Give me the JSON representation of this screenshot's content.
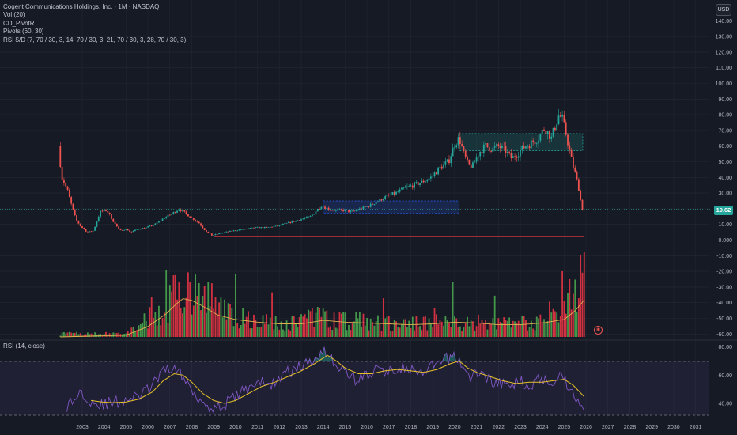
{
  "header": {
    "symbol_line": "Cogent Communications Holdings, Inc. · 1M · NASDAQ",
    "indicators": [
      "Vol (20)",
      "CD_PivotR",
      "Pivots (60, 30)",
      "RSI $/D (7, 70 / 30, 3, 14, 70 / 30, 3, 21, 70 / 30, 3, 28, 70 / 30, 3)"
    ],
    "currency": "USD",
    "last_price_label": "19.62",
    "rsi_label": "RSI (14, close)"
  },
  "colors": {
    "background": "#161a25",
    "up": "#26a69a",
    "down": "#ef5350",
    "vol_up": "#4caf50",
    "vol_down": "#f23645",
    "vol_ma": "#e0b050",
    "rsi_line": "#7e57c2",
    "rsi_ma": "#e6c229",
    "support_line": "#f23645",
    "zone_green": "#26a69a",
    "zone_blue": "#2962ff",
    "grid": "#242833",
    "axis_text": "#b2b5be"
  },
  "chart_data": {
    "type": "candlestick",
    "title": "Cogent Communications Holdings, Inc. · 1M · NASDAQ",
    "x_axis_labels": [
      "2003",
      "2004",
      "2005",
      "2006",
      "2007",
      "2008",
      "2009",
      "2010",
      "2011",
      "2012",
      "2013",
      "2014",
      "2015",
      "2016",
      "2017",
      "2018",
      "2019",
      "2020",
      "2021",
      "2022",
      "2023",
      "2024",
      "2025",
      "2026",
      "2027",
      "2028",
      "2029",
      "2030",
      "2031"
    ],
    "price_axis_labels": [
      "140.00",
      "130.00",
      "120.00",
      "110.00",
      "100.00",
      "90.00",
      "80.00",
      "70.00",
      "60.00",
      "50.00",
      "40.00",
      "30.00",
      "20.00",
      "10.00",
      "0.000",
      "-10.00",
      "-20.00",
      "-30.00",
      "-40.00",
      "-50.00",
      "-60.00"
    ],
    "price_axis_values": [
      140,
      130,
      120,
      110,
      100,
      90,
      80,
      70,
      60,
      50,
      40,
      30,
      20,
      10,
      0,
      -10,
      -20,
      -30,
      -40,
      -50,
      -60
    ],
    "rsi_axis_labels": [
      "80.00",
      "60.00",
      "40.00"
    ],
    "rsi_axis_values": [
      80,
      60,
      40
    ],
    "x_range": [
      2003,
      2031
    ],
    "y_range": [
      -65,
      145
    ],
    "rsi_range": [
      35,
      82
    ],
    "last_price": 19.62,
    "support_level": 2.2,
    "zones": [
      {
        "kind": "green",
        "x": [
          2020.2,
          2025.85
        ],
        "y": [
          57,
          68
        ]
      },
      {
        "kind": "blue",
        "x": [
          2014.0,
          2020.2
        ],
        "y": [
          17,
          25
        ]
      }
    ],
    "price_path": [
      [
        2002.0,
        60
      ],
      [
        2002.15,
        40
      ],
      [
        2002.4,
        32
      ],
      [
        2002.6,
        22
      ],
      [
        2002.8,
        13
      ],
      [
        2003.0,
        9
      ],
      [
        2003.3,
        5
      ],
      [
        2003.6,
        6
      ],
      [
        2003.9,
        18
      ],
      [
        2004.2,
        19
      ],
      [
        2004.5,
        12
      ],
      [
        2004.8,
        6
      ],
      [
        2005.1,
        7
      ],
      [
        2005.3,
        5
      ],
      [
        2005.6,
        7
      ],
      [
        2006.0,
        8
      ],
      [
        2006.4,
        10
      ],
      [
        2006.8,
        14
      ],
      [
        2007.2,
        17
      ],
      [
        2007.5,
        20
      ],
      [
        2007.8,
        17
      ],
      [
        2008.1,
        14
      ],
      [
        2008.4,
        11
      ],
      [
        2008.7,
        6
      ],
      [
        2009.0,
        3
      ],
      [
        2009.3,
        4
      ],
      [
        2009.6,
        5
      ],
      [
        2010.0,
        6
      ],
      [
        2010.5,
        7
      ],
      [
        2011.0,
        8
      ],
      [
        2011.5,
        8
      ],
      [
        2012.0,
        9
      ],
      [
        2012.5,
        11
      ],
      [
        2013.0,
        13
      ],
      [
        2013.5,
        15
      ],
      [
        2014.0,
        22
      ],
      [
        2014.3,
        20
      ],
      [
        2014.6,
        19
      ],
      [
        2015.0,
        19
      ],
      [
        2015.4,
        18
      ],
      [
        2015.8,
        20
      ],
      [
        2016.2,
        22
      ],
      [
        2016.6,
        25
      ],
      [
        2017.0,
        28
      ],
      [
        2017.4,
        30
      ],
      [
        2017.8,
        33
      ],
      [
        2018.2,
        35
      ],
      [
        2018.6,
        37
      ],
      [
        2019.0,
        40
      ],
      [
        2019.4,
        46
      ],
      [
        2019.8,
        50
      ],
      [
        2020.1,
        62
      ],
      [
        2020.3,
        65
      ],
      [
        2020.5,
        55
      ],
      [
        2020.7,
        48
      ],
      [
        2020.9,
        47
      ],
      [
        2021.2,
        56
      ],
      [
        2021.5,
        60
      ],
      [
        2021.8,
        58
      ],
      [
        2022.1,
        60
      ],
      [
        2022.4,
        57
      ],
      [
        2022.7,
        52
      ],
      [
        2023.0,
        56
      ],
      [
        2023.3,
        60
      ],
      [
        2023.6,
        62
      ],
      [
        2023.9,
        65
      ],
      [
        2024.2,
        72
      ],
      [
        2024.5,
        65
      ],
      [
        2024.7,
        74
      ],
      [
        2024.85,
        80
      ],
      [
        2025.0,
        77
      ],
      [
        2025.2,
        66
      ],
      [
        2025.4,
        52
      ],
      [
        2025.6,
        42
      ],
      [
        2025.75,
        33
      ],
      [
        2025.9,
        19.6
      ]
    ],
    "volume_path": [
      [
        2005.0,
        0.04
      ],
      [
        2005.5,
        0.12
      ],
      [
        2006.0,
        0.22
      ],
      [
        2006.5,
        0.32
      ],
      [
        2007.0,
        0.44
      ],
      [
        2007.3,
        0.58
      ],
      [
        2007.6,
        0.62
      ],
      [
        2008.0,
        0.55
      ],
      [
        2008.5,
        0.48
      ],
      [
        2009.0,
        0.42
      ],
      [
        2009.5,
        0.33
      ],
      [
        2010.0,
        0.28
      ],
      [
        2011.0,
        0.22
      ],
      [
        2012.0,
        0.18
      ],
      [
        2013.0,
        0.2
      ],
      [
        2014.0,
        0.28
      ],
      [
        2014.5,
        0.22
      ],
      [
        2015.0,
        0.2
      ],
      [
        2016.0,
        0.2
      ],
      [
        2017.0,
        0.18
      ],
      [
        2018.0,
        0.17
      ],
      [
        2019.0,
        0.18
      ],
      [
        2020.0,
        0.2
      ],
      [
        2021.0,
        0.18
      ],
      [
        2022.0,
        0.16
      ],
      [
        2023.0,
        0.17
      ],
      [
        2024.0,
        0.2
      ],
      [
        2024.5,
        0.25
      ],
      [
        2025.0,
        0.3
      ],
      [
        2025.5,
        0.65
      ],
      [
        2025.9,
        0.9
      ]
    ],
    "volume_ma_path": [
      [
        2002.0,
        0.0
      ],
      [
        2005.0,
        0.02
      ],
      [
        2006.0,
        0.12
      ],
      [
        2006.8,
        0.26
      ],
      [
        2007.3,
        0.38
      ],
      [
        2007.6,
        0.44
      ],
      [
        2008.0,
        0.42
      ],
      [
        2008.6,
        0.34
      ],
      [
        2009.2,
        0.25
      ],
      [
        2010.0,
        0.2
      ],
      [
        2011.0,
        0.17
      ],
      [
        2012.0,
        0.15
      ],
      [
        2013.0,
        0.15
      ],
      [
        2014.0,
        0.19
      ],
      [
        2015.0,
        0.17
      ],
      [
        2016.0,
        0.16
      ],
      [
        2017.0,
        0.15
      ],
      [
        2018.0,
        0.14
      ],
      [
        2019.0,
        0.15
      ],
      [
        2020.0,
        0.17
      ],
      [
        2021.0,
        0.16
      ],
      [
        2022.0,
        0.14
      ],
      [
        2023.0,
        0.14
      ],
      [
        2024.0,
        0.16
      ],
      [
        2025.0,
        0.2
      ],
      [
        2025.5,
        0.3
      ],
      [
        2025.9,
        0.42
      ]
    ],
    "rsi_path": [
      [
        2002.3,
        37
      ],
      [
        2002.6,
        42
      ],
      [
        2002.9,
        48
      ],
      [
        2003.2,
        45
      ],
      [
        2003.5,
        41
      ],
      [
        2003.9,
        39
      ],
      [
        2004.2,
        40
      ],
      [
        2004.6,
        41
      ],
      [
        2005.0,
        43
      ],
      [
        2005.4,
        44
      ],
      [
        2005.8,
        47
      ],
      [
        2006.2,
        53
      ],
      [
        2006.6,
        60
      ],
      [
        2007.0,
        66
      ],
      [
        2007.3,
        64
      ],
      [
        2007.6,
        58
      ],
      [
        2008.0,
        50
      ],
      [
        2008.4,
        43
      ],
      [
        2008.8,
        38
      ],
      [
        2009.2,
        37
      ],
      [
        2009.6,
        40
      ],
      [
        2010.0,
        45
      ],
      [
        2010.5,
        50
      ],
      [
        2011.0,
        56
      ],
      [
        2011.5,
        52
      ],
      [
        2012.0,
        58
      ],
      [
        2012.5,
        63
      ],
      [
        2013.0,
        66
      ],
      [
        2013.5,
        70
      ],
      [
        2014.0,
        79
      ],
      [
        2014.3,
        73
      ],
      [
        2014.7,
        66
      ],
      [
        2015.0,
        62
      ],
      [
        2015.5,
        57
      ],
      [
        2016.0,
        60
      ],
      [
        2016.5,
        64
      ],
      [
        2017.0,
        62
      ],
      [
        2017.5,
        66
      ],
      [
        2018.0,
        63
      ],
      [
        2018.5,
        60
      ],
      [
        2019.0,
        66
      ],
      [
        2019.5,
        70
      ],
      [
        2020.0,
        74
      ],
      [
        2020.3,
        68
      ],
      [
        2020.7,
        58
      ],
      [
        2021.0,
        62
      ],
      [
        2021.5,
        58
      ],
      [
        2022.0,
        54
      ],
      [
        2022.5,
        52
      ],
      [
        2023.0,
        56
      ],
      [
        2023.5,
        53
      ],
      [
        2024.0,
        58
      ],
      [
        2024.5,
        55
      ],
      [
        2024.85,
        62
      ],
      [
        2025.2,
        52
      ],
      [
        2025.5,
        45
      ],
      [
        2025.8,
        38
      ],
      [
        2025.9,
        35
      ]
    ],
    "rsi_ma_path": [
      [
        2003.4,
        42
      ],
      [
        2003.9,
        41
      ],
      [
        2004.4,
        40.5
      ],
      [
        2005.0,
        41
      ],
      [
        2005.6,
        43
      ],
      [
        2006.2,
        48
      ],
      [
        2006.7,
        56
      ],
      [
        2007.2,
        61
      ],
      [
        2007.6,
        60
      ],
      [
        2008.0,
        55
      ],
      [
        2008.5,
        47
      ],
      [
        2009.0,
        42
      ],
      [
        2009.5,
        40
      ],
      [
        2010.0,
        42
      ],
      [
        2010.6,
        47
      ],
      [
        2011.2,
        52
      ],
      [
        2011.8,
        55
      ],
      [
        2012.4,
        59
      ],
      [
        2013.0,
        63
      ],
      [
        2013.6,
        68
      ],
      [
        2014.2,
        74
      ],
      [
        2014.6,
        70
      ],
      [
        2015.0,
        65
      ],
      [
        2015.6,
        61
      ],
      [
        2016.2,
        61
      ],
      [
        2016.8,
        63
      ],
      [
        2017.4,
        64
      ],
      [
        2018.0,
        63
      ],
      [
        2018.6,
        62
      ],
      [
        2019.2,
        64
      ],
      [
        2019.8,
        68
      ],
      [
        2020.2,
        70
      ],
      [
        2020.6,
        65
      ],
      [
        2021.0,
        62
      ],
      [
        2021.6,
        59
      ],
      [
        2022.2,
        56
      ],
      [
        2022.8,
        54
      ],
      [
        2023.4,
        55
      ],
      [
        2024.0,
        55
      ],
      [
        2024.5,
        56
      ],
      [
        2025.0,
        57
      ],
      [
        2025.4,
        53
      ],
      [
        2025.9,
        45
      ]
    ]
  }
}
